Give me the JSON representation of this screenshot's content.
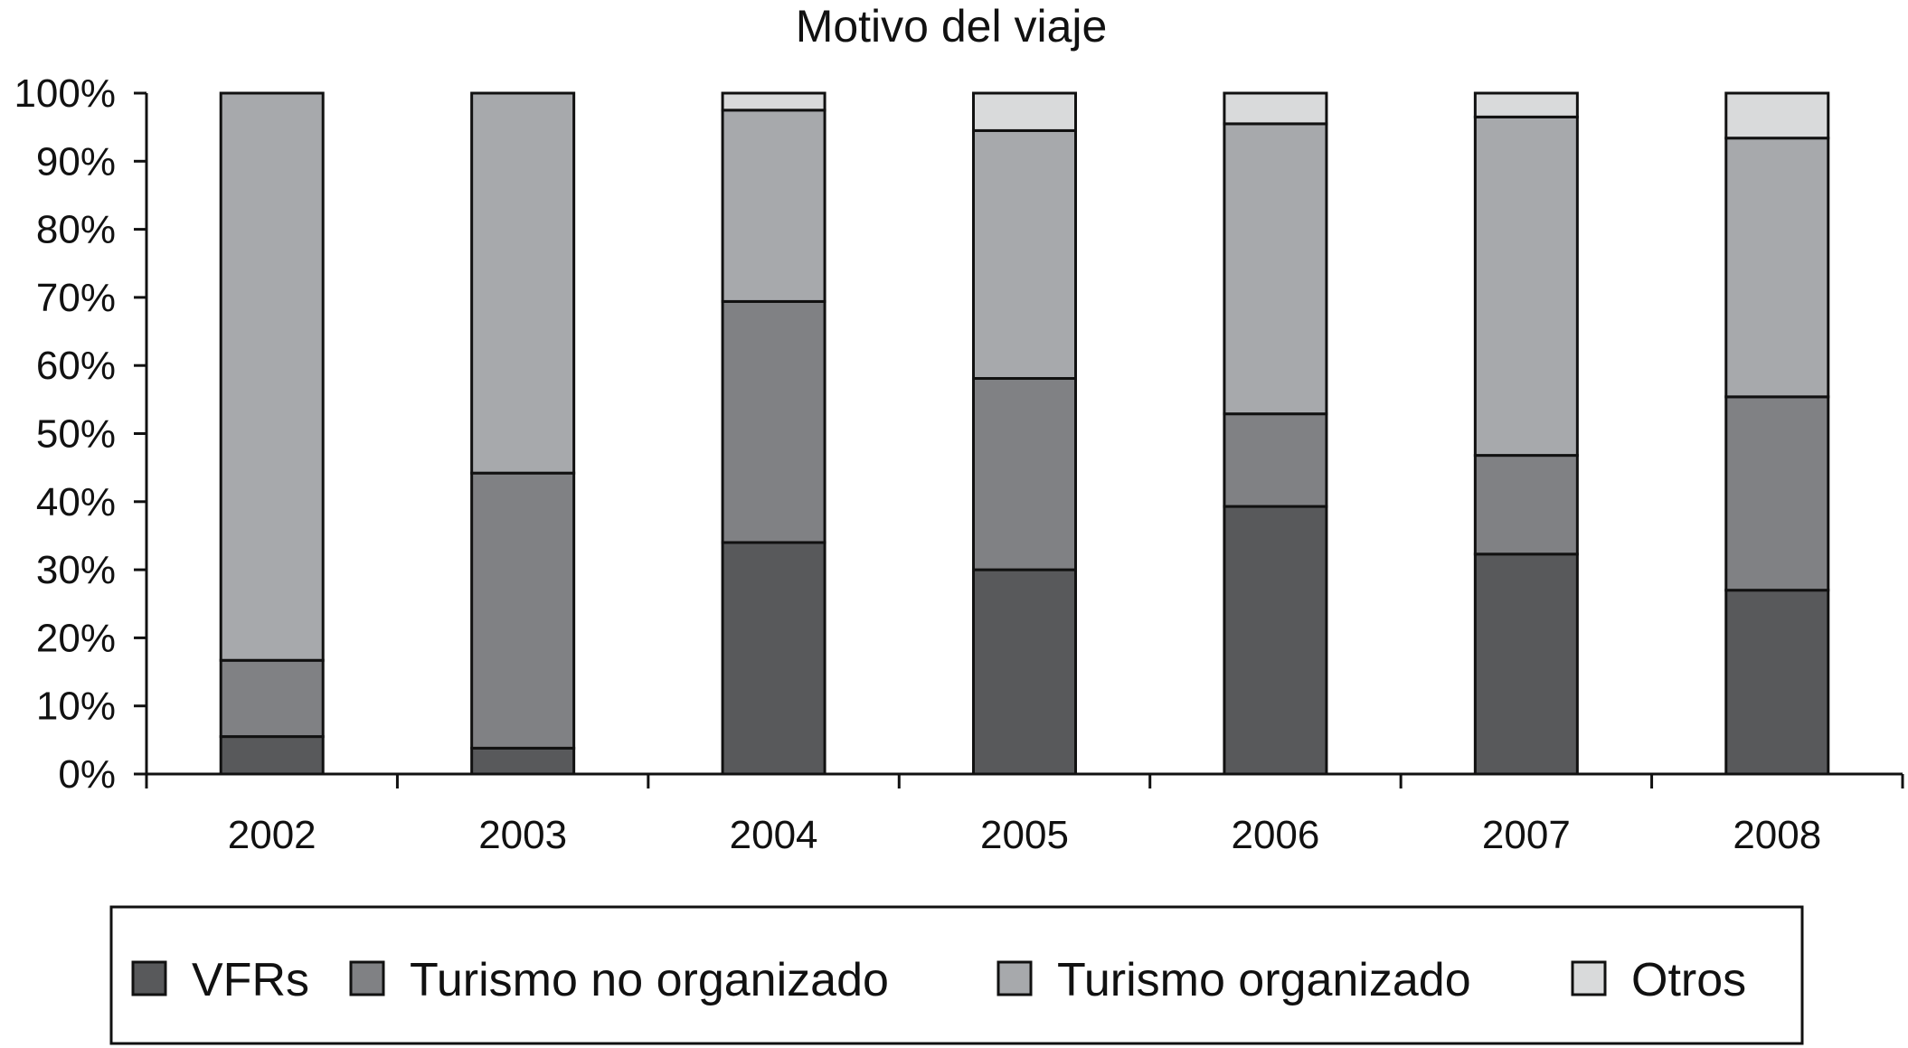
{
  "chart_data": {
    "type": "bar",
    "stacked": true,
    "normalized": true,
    "title": "Motivo del viaje",
    "xlabel": "",
    "ylabel": "",
    "ylim": [
      0,
      100
    ],
    "y_ticks": [
      "0%",
      "10%",
      "20%",
      "30%",
      "40%",
      "50%",
      "60%",
      "70%",
      "80%",
      "90%",
      "100%"
    ],
    "categories": [
      "2002",
      "2003",
      "2004",
      "2005",
      "2006",
      "2007",
      "2008"
    ],
    "series": [
      {
        "name": "VFRs",
        "color": "#58595b",
        "values": [
          5.5,
          3.8,
          34,
          30,
          39.3,
          32.3,
          27
        ]
      },
      {
        "name": "Turismo no organizado",
        "color": "#808184",
        "values": [
          11.2,
          40.4,
          35.4,
          28.1,
          13.6,
          14.5,
          28.4
        ]
      },
      {
        "name": "Turismo organizado",
        "color": "#a7a9ac",
        "values": [
          83.3,
          55.8,
          28.1,
          36.4,
          42.6,
          49.7,
          38
        ]
      },
      {
        "name": "Otros",
        "color": "#d9dadb",
        "values": [
          0,
          0,
          2.5,
          5.5,
          4.5,
          3.5,
          6.6
        ]
      }
    ],
    "grid": false,
    "legend_position": "bottom"
  }
}
